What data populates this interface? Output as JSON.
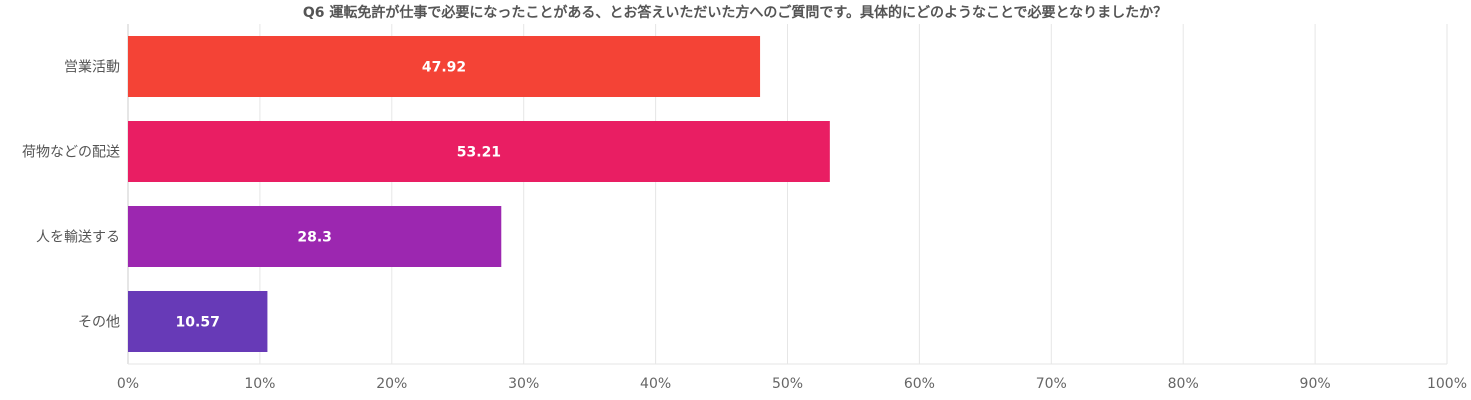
{
  "chart_data": {
    "type": "bar",
    "orientation": "horizontal",
    "title": "Q6 運転免許が仕事で必要になったことがある、とお答えいただいた方へのご質問です。具体的にどのようなことで必要となりましたか？",
    "categories": [
      "営業活動",
      "荷物などの配送",
      "人を輸送する",
      "その他"
    ],
    "values": [
      47.92,
      53.21,
      28.3,
      10.57
    ],
    "value_labels": [
      "47.92",
      "53.21",
      "28.3",
      "10.57"
    ],
    "colors": [
      "#f44336",
      "#e91e63",
      "#9c27b0",
      "#673ab7"
    ],
    "xlim": [
      0,
      100
    ],
    "x_ticks": [
      0,
      10,
      20,
      30,
      40,
      50,
      60,
      70,
      80,
      90,
      100
    ],
    "x_tick_labels": [
      "0%",
      "10%",
      "20%",
      "30%",
      "40%",
      "50%",
      "60%",
      "70%",
      "80%",
      "90%",
      "100%"
    ],
    "grid": true
  }
}
